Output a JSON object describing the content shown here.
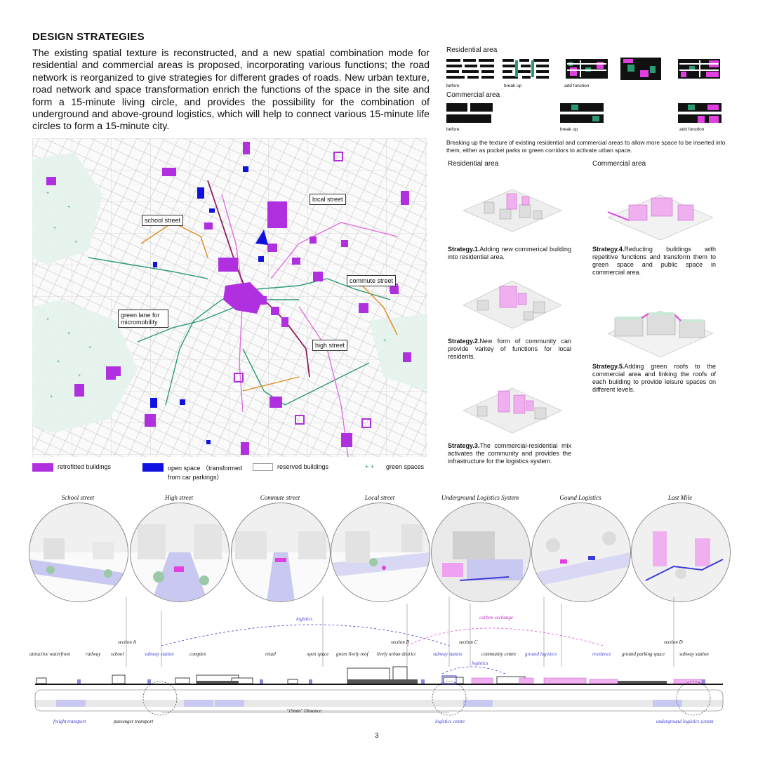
{
  "title": "DESIGN STRATEGIES",
  "intro": "The existing spatial texture is reconstructed, and a new spatial combination mode for residential and commercial areas is proposed, incorporating various functions; the road network is reorganized to give strategies for different grades of roads. New urban texture, road network and space transformation enrich the functions of the space in the site and form a 15-minute living circle, and provides the possibility for the combination of underground and above-ground logistics, which will help to connect various 15-minute life circles to form a 15-minute city.",
  "map_labels": {
    "school_street": "school street",
    "local_street": "local street",
    "commute_street": "commute street",
    "green_lane": "green lane for micromobility",
    "high_street": "high street"
  },
  "legend": {
    "retrofitted": "retrofitted buildings",
    "open_space": "open space （transformed from car parkings）",
    "reserved": "reserved buildings",
    "green": "green spaces"
  },
  "colors": {
    "magenta": "#b030e0",
    "blue": "#1010e0",
    "green": "#2a9a70",
    "orange": "#e08a20",
    "pink": "#e070e0"
  },
  "texture": {
    "residential_title": "Residential area",
    "commercial_title": "Commercial area",
    "res_steps": [
      "before",
      "break up",
      "add function"
    ],
    "com_steps": [
      "before",
      "break up",
      "add function"
    ],
    "caption": "Breaking up the texture of existing residential and commercial areas to allow more space to be inserted into them, either as pocket parks or green corridors to activate urban space."
  },
  "strategies": {
    "res_col": "Residential area",
    "com_col": "Commercial area",
    "s1_head": "Strategy.1.",
    "s1_body": "Adding new commerical building into residential area.",
    "s2_head": "Strategy.2.",
    "s2_body": "New form of community can provide varitey of functions for local residents.",
    "s3_head": "Strategy.3.",
    "s3_body": "The commercial-residential mix activates the community and provides the infrastructure for the logistics system.",
    "s4_head": "Strategy.4.",
    "s4_body": "Reducting buildings with repetitive functions and transform them to green space and public space in commercial area.",
    "s5_head": "Strategy.5.",
    "s5_body": "Adding green roofs to the commercial area and linking the roofs of each building to provide leisure spaces on different levels."
  },
  "circles": [
    "School street",
    "High street",
    "Commute street",
    "Local street",
    "Underground Logistics System",
    "Gound Logistics",
    "Last Mile"
  ],
  "section": {
    "logistics": "logistics",
    "carbon": "carbon exchange",
    "logistics2": "logistics",
    "sec_a": "section A",
    "sec_b": "section B",
    "sec_c": "section C",
    "sec_d": "section D",
    "labels": [
      "attractive waterfront",
      "railway",
      "school",
      "subway station",
      "complex",
      "retail",
      "open space",
      "green lively roof",
      "lively urban district",
      "subway station",
      "community centre",
      "ground logistics",
      "residence",
      "ground parking space",
      "subway station"
    ],
    "freight": "freight transport",
    "passenger": "passenger transport",
    "distance": "\"15min\" Distance",
    "centre": "logistics centre",
    "underground": "underground logistics system"
  },
  "page_number": "3"
}
